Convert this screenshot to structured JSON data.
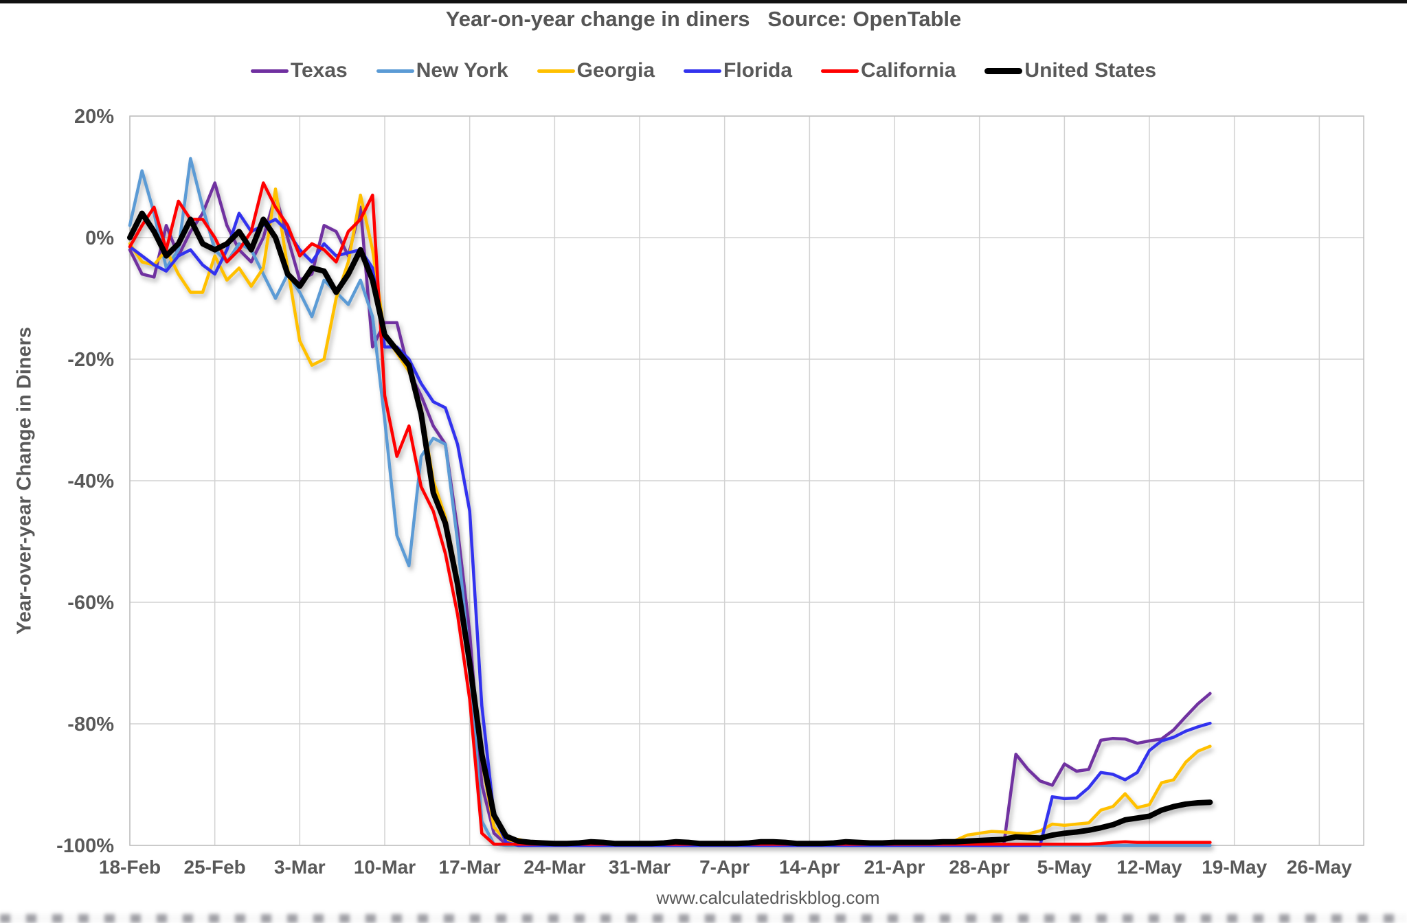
{
  "title": "Year-on-year change in diners   Source: OpenTable",
  "y_axis_label": "Year-over-year Change in Diners",
  "footer": "www.calculatedriskblog.com",
  "legend": [
    "Texas",
    "New York",
    "Georgia",
    "Florida",
    "California",
    "United States"
  ],
  "colors": {
    "texas": "#7030A0",
    "new_york": "#5B9BD5",
    "georgia": "#FFC000",
    "florida": "#3333EE",
    "california": "#FF0000",
    "united_states": "#000000",
    "grid": "#D2D2D2",
    "plot_border": "#BFBFBF",
    "text": "#595959"
  },
  "chart_data": {
    "type": "line",
    "title": "Year-on-year change in diners",
    "source": "Source: OpenTable",
    "ylabel": "Year-over-year Change in Diners",
    "ylim": [
      -100,
      20
    ],
    "grid": true,
    "legend_position": "top",
    "x_range": {
      "start": "18-Feb",
      "end": "17-May",
      "step_days": 1,
      "points": 90
    },
    "x_ticks": [
      {
        "label": "18-Feb",
        "day": 0
      },
      {
        "label": "25-Feb",
        "day": 7
      },
      {
        "label": "3-Mar",
        "day": 14
      },
      {
        "label": "10-Mar",
        "day": 21
      },
      {
        "label": "17-Mar",
        "day": 28
      },
      {
        "label": "24-Mar",
        "day": 35
      },
      {
        "label": "31-Mar",
        "day": 42
      },
      {
        "label": "7-Apr",
        "day": 49
      },
      {
        "label": "14-Apr",
        "day": 56
      },
      {
        "label": "21-Apr",
        "day": 63
      },
      {
        "label": "28-Apr",
        "day": 70
      },
      {
        "label": "5-May",
        "day": 77
      },
      {
        "label": "12-May",
        "day": 84
      },
      {
        "label": "19-May",
        "day": 91
      },
      {
        "label": "26-May",
        "day": 98
      }
    ],
    "y_ticks": [
      {
        "label": "20%",
        "value": 20
      },
      {
        "label": "0%",
        "value": 0
      },
      {
        "label": "-20%",
        "value": -20
      },
      {
        "label": "-40%",
        "value": -40
      },
      {
        "label": "-60%",
        "value": -60
      },
      {
        "label": "-80%",
        "value": -80
      },
      {
        "label": "-100%",
        "value": -100
      }
    ],
    "series": [
      {
        "name": "Texas",
        "color": "#7030A0",
        "width": 4.5,
        "values": [
          -2,
          -6,
          -6.5,
          2,
          -3,
          1,
          4,
          9,
          2,
          -2,
          -4,
          0,
          7,
          0,
          -7,
          -6,
          2,
          1,
          -3,
          5,
          -18,
          -14,
          -14,
          -22,
          -26,
          -31,
          -34,
          -48,
          -65,
          -90,
          -98,
          -99.8,
          -100,
          -100,
          -100,
          -100,
          -100,
          -100,
          -100,
          -100,
          -100,
          -100,
          -100,
          -100,
          -100,
          -100,
          -100,
          -100,
          -100,
          -100,
          -100,
          -100,
          -100,
          -100,
          -100,
          -100,
          -100,
          -100,
          -100,
          -100,
          -100,
          -100,
          -100,
          -100,
          -100,
          -100,
          -100,
          -100,
          -100,
          -100,
          -100,
          -100,
          -100,
          -85,
          -87.5,
          -89.4,
          -90.1,
          -86.6,
          -87.8,
          -87.5,
          -82.7,
          -82.4,
          -82.5,
          -83.2,
          -82.8,
          -82.5,
          -81,
          -78.8,
          -76.7,
          -75
        ]
      },
      {
        "name": "New York",
        "color": "#5B9BD5",
        "width": 4.5,
        "values": [
          2,
          11,
          4,
          -5,
          -2,
          13,
          5,
          -2,
          -4,
          -1,
          -2,
          -6,
          -10,
          -6,
          -9,
          -13,
          -7,
          -9,
          -11,
          -7,
          -13,
          -30,
          -49,
          -54,
          -36,
          -33,
          -34,
          -50,
          -70,
          -96,
          -99.8,
          -100,
          -100,
          -100,
          -100,
          -100,
          -100,
          -100,
          -100,
          -100,
          -100,
          -100,
          -100,
          -100,
          -100,
          -100,
          -100,
          -100,
          -100,
          -100,
          -100,
          -100,
          -100,
          -100,
          -100,
          -100,
          -100,
          -100,
          -100,
          -100,
          -100,
          -100,
          -100,
          -100,
          -100,
          -100,
          -100,
          -100,
          -100,
          -100,
          -100,
          -100,
          -100,
          -100,
          -100,
          -100,
          -100,
          -100,
          -100,
          -100,
          -100,
          -100,
          -100,
          -100,
          -100,
          -100,
          -100,
          -100,
          -100,
          -100
        ]
      },
      {
        "name": "Georgia",
        "color": "#FFC000",
        "width": 4.5,
        "values": [
          -1,
          -4,
          -4.5,
          -2,
          -6,
          -9,
          -9,
          -3,
          -7,
          -5,
          -8,
          -5,
          8,
          -5,
          -17,
          -21,
          -20,
          -10,
          -4,
          7,
          -2,
          -16,
          -19,
          -22,
          -28,
          -40,
          -46,
          -56,
          -71,
          -86,
          -97,
          -99.3,
          -99,
          -99.5,
          -99.7,
          -99.8,
          -99.8,
          -99.8,
          -99.7,
          -99.8,
          -99.8,
          -99.8,
          -99.8,
          -99.8,
          -99.8,
          -99.8,
          -99.8,
          -99.8,
          -99.8,
          -99.8,
          -99.8,
          -99.8,
          -99.8,
          -99.8,
          -99.8,
          -99.8,
          -99.8,
          -99.8,
          -99.8,
          -99.8,
          -99.8,
          -99.8,
          -99.8,
          -99.8,
          -99.8,
          -99.8,
          -99.8,
          -99.6,
          -99.2,
          -98.3,
          -98,
          -97.7,
          -97.8,
          -98,
          -98.1,
          -97.6,
          -96.5,
          -96.7,
          -96.5,
          -96.3,
          -94.2,
          -93.6,
          -91.5,
          -93.8,
          -93.3,
          -89.7,
          -89.2,
          -86.3,
          -84.5,
          -83.7
        ]
      },
      {
        "name": "Florida",
        "color": "#3333EE",
        "width": 4.5,
        "values": [
          -1.5,
          -3,
          -4.5,
          -5.5,
          -3,
          -2,
          -4.5,
          -6,
          -2,
          4,
          1,
          2,
          3,
          1,
          -2,
          -4,
          -1,
          -3,
          -2.5,
          -2,
          -5,
          -18,
          -18,
          -20,
          -24,
          -27,
          -28,
          -34,
          -45,
          -77,
          -95,
          -99.5,
          -100,
          -100,
          -100,
          -100,
          -100,
          -100,
          -100,
          -100,
          -100,
          -100,
          -100,
          -100,
          -100,
          -100,
          -100,
          -100,
          -100,
          -100,
          -100,
          -100,
          -100,
          -100,
          -100,
          -100,
          -100,
          -100,
          -100,
          -100,
          -100,
          -100,
          -100,
          -100,
          -100,
          -100,
          -100,
          -100,
          -100,
          -100,
          -100,
          -100,
          -100,
          -100,
          -100,
          -100,
          -92,
          -92.3,
          -92.2,
          -90.5,
          -88,
          -88.3,
          -89.2,
          -88,
          -84.4,
          -82.8,
          -82.2,
          -81.2,
          -80.5,
          -79.9
        ]
      },
      {
        "name": "California",
        "color": "#FF0000",
        "width": 4.5,
        "values": [
          -1.5,
          2,
          5,
          -2,
          6,
          3,
          3,
          0,
          -4,
          -2,
          1,
          9,
          5,
          2,
          -3,
          -1,
          -2,
          -4,
          1,
          3,
          7,
          -26,
          -36,
          -31,
          -41,
          -45,
          -52,
          -62,
          -76,
          -98,
          -99.8,
          -99.8,
          -99.8,
          -99.8,
          -99.8,
          -99.8,
          -99.8,
          -99.8,
          -99.8,
          -99.8,
          -99.8,
          -99.8,
          -99.8,
          -99.8,
          -99.8,
          -99.8,
          -99.8,
          -99.8,
          -99.8,
          -99.8,
          -99.8,
          -99.8,
          -99.8,
          -99.8,
          -99.8,
          -99.8,
          -99.8,
          -99.8,
          -99.8,
          -99.8,
          -99.8,
          -99.8,
          -99.8,
          -99.8,
          -99.8,
          -99.8,
          -99.8,
          -99.8,
          -99.8,
          -99.8,
          -99.8,
          -99.8,
          -99.8,
          -99.8,
          -99.8,
          -99.8,
          -99.8,
          -99.8,
          -99.8,
          -99.8,
          -99.7,
          -99.5,
          -99.4,
          -99.5,
          -99.5,
          -99.5,
          -99.5,
          -99.5,
          -99.5,
          -99.5
        ]
      },
      {
        "name": "United States",
        "color": "#000000",
        "width": 8,
        "values": [
          0,
          4,
          1,
          -3,
          -1,
          3,
          -1,
          -2,
          -1,
          1,
          -2,
          3,
          0,
          -6,
          -8,
          -5,
          -5.5,
          -9,
          -6,
          -2,
          -7,
          -16,
          -18.5,
          -21,
          -29,
          -42,
          -47,
          -57,
          -70,
          -85,
          -95,
          -98.5,
          -99.3,
          -99.5,
          -99.6,
          -99.7,
          -99.7,
          -99.6,
          -99.4,
          -99.5,
          -99.7,
          -99.7,
          -99.7,
          -99.7,
          -99.6,
          -99.4,
          -99.5,
          -99.7,
          -99.7,
          -99.7,
          -99.7,
          -99.6,
          -99.4,
          -99.4,
          -99.5,
          -99.7,
          -99.7,
          -99.7,
          -99.6,
          -99.4,
          -99.5,
          -99.6,
          -99.6,
          -99.5,
          -99.5,
          -99.5,
          -99.5,
          -99.4,
          -99.4,
          -99.3,
          -99.2,
          -99.1,
          -99,
          -98.6,
          -98.7,
          -98.8,
          -98.3,
          -98,
          -97.8,
          -97.5,
          -97.1,
          -96.6,
          -95.8,
          -95.5,
          -95.2,
          -94.2,
          -93.6,
          -93.2,
          -93,
          -92.9
        ]
      }
    ]
  }
}
